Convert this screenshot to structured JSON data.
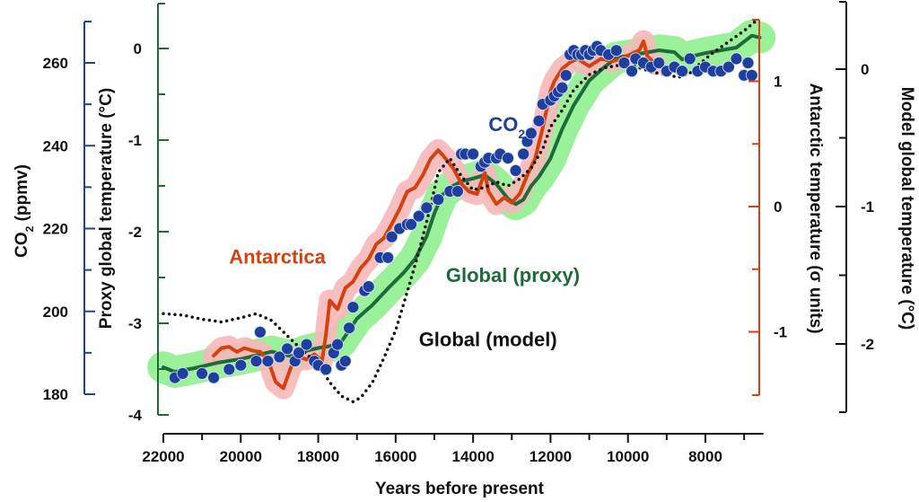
{
  "chart_data": {
    "type": "line",
    "title": "",
    "xlabel": "Years before present",
    "x_axis": {
      "range": [
        22000,
        6500
      ],
      "reversed": true,
      "major_ticks": [
        22000,
        20000,
        18000,
        16000,
        14000,
        12000,
        10000,
        8000
      ],
      "minor_ticks": [
        21000,
        19000,
        17000,
        15000,
        13000,
        11000,
        9000,
        7000
      ],
      "tick_labels": [
        "22000",
        "20000",
        "18000",
        "16000",
        "14000",
        "12000",
        "10000",
        "8000"
      ]
    },
    "y_axes": [
      {
        "id": "co2",
        "label_main": "CO",
        "label_sub": "2",
        "label_rest": " (ppmv)",
        "side": "left-outer",
        "color": "#1f3f9f",
        "range": [
          176,
          270
        ],
        "ticks": [
          180,
          200,
          220,
          240,
          260
        ],
        "minor_ticks": [
          190,
          210,
          230,
          250
        ],
        "tick_labels": [
          "180",
          "200",
          "220",
          "240",
          "260"
        ]
      },
      {
        "id": "proxy",
        "label": "Proxy global temperature (°C)",
        "side": "left-inner",
        "color": "#1e6b3a",
        "range": [
          -4,
          0.5
        ],
        "ticks": [
          -4,
          -3,
          -2,
          -1,
          0
        ],
        "minor_ticks": [
          -3.5,
          -2.5,
          -1.5,
          -0.5
        ],
        "tick_labels": [
          "-4",
          "-3",
          "-2",
          "-1",
          "0"
        ]
      },
      {
        "id": "antarctic",
        "label": "Antarctic temperature (σ units)",
        "side": "right-inner",
        "color": "#d4410f",
        "range": [
          -1.5,
          1.5
        ],
        "ticks": [
          -1,
          0,
          1
        ],
        "minor_ticks": [
          -0.5,
          0.5
        ],
        "tick_labels": [
          "-1",
          "0",
          "1"
        ]
      },
      {
        "id": "model",
        "label": "Model global temperature (°C)",
        "side": "right-outer",
        "color": "#111111",
        "range": [
          -2.5,
          0.5
        ],
        "ticks": [
          -2,
          -1,
          0
        ],
        "minor_ticks": [
          -1.5,
          -0.5
        ],
        "tick_labels": [
          "-2",
          "-1",
          "0"
        ]
      }
    ],
    "annotations": [
      {
        "text": "Antarctica",
        "color": "#d4410f",
        "x": 20300,
        "axis": "proxy",
        "y": -2.35
      },
      {
        "text_main": "CO",
        "text_sub": "2",
        "color": "#1f3f9f",
        "x": 13600,
        "axis": "proxy",
        "y": -0.9
      },
      {
        "text": "Global (proxy)",
        "color": "#1e6b3a",
        "x": 14700,
        "axis": "proxy",
        "y": -2.55
      },
      {
        "text": "Global (model)",
        "color": "#111111",
        "x": 15400,
        "axis": "proxy",
        "y": -3.25
      }
    ],
    "series": [
      {
        "name": "Global (proxy)",
        "axis": "proxy",
        "style": "line-with-band",
        "color": "#1e6b3a",
        "band_color": "#8ff08f",
        "band_halfwidth": 0.15,
        "x": [
          22000,
          21700,
          21200,
          20600,
          20000,
          19600,
          19200,
          18700,
          18300,
          18000,
          17700,
          17400,
          17000,
          16600,
          16200,
          15800,
          15500,
          15200,
          15000,
          14800,
          14600,
          14300,
          14000,
          13700,
          13400,
          13100,
          12900,
          12700,
          12500,
          12300,
          12000,
          11700,
          11400,
          11000,
          10600,
          10300,
          10000,
          9600,
          9200,
          8800,
          8600,
          8300,
          8000,
          7600,
          7200,
          6800,
          6600
        ],
        "values": [
          -3.48,
          -3.53,
          -3.49,
          -3.43,
          -3.39,
          -3.35,
          -3.31,
          -3.36,
          -3.3,
          -3.27,
          -3.25,
          -3.2,
          -2.95,
          -2.8,
          -2.62,
          -2.45,
          -2.3,
          -2.05,
          -1.8,
          -1.6,
          -1.52,
          -1.45,
          -1.42,
          -1.38,
          -1.48,
          -1.64,
          -1.7,
          -1.65,
          -1.5,
          -1.4,
          -1.2,
          -0.88,
          -0.62,
          -0.35,
          -0.2,
          -0.1,
          -0.08,
          -0.05,
          -0.02,
          -0.04,
          -0.12,
          -0.08,
          -0.05,
          -0.02,
          0.01,
          0.14,
          0.12
        ]
      },
      {
        "name": "Antarctica",
        "axis": "antarctic",
        "style": "line-with-band",
        "color": "#d4410f",
        "band_color": "#f6b8b8",
        "band_halfwidth": 0.07,
        "x": [
          20700,
          20500,
          20300,
          20100,
          19900,
          19700,
          19500,
          19300,
          19100,
          18900,
          18700,
          18500,
          18300,
          18100,
          17900,
          17800,
          17700,
          17500,
          17300,
          17100,
          16900,
          16700,
          16500,
          16300,
          16100,
          15900,
          15700,
          15500,
          15300,
          15100,
          14900,
          14700,
          14500,
          14300,
          14100,
          13900,
          13700,
          13600,
          13400,
          13200,
          13000,
          12800,
          12600,
          12400,
          12200,
          12000,
          11900,
          11700,
          11500,
          11300,
          11000,
          10700,
          10400,
          10100,
          9900,
          9700,
          9600,
          9500,
          9300
        ],
        "values": [
          -1.19,
          -1.13,
          -1.12,
          -1.16,
          -1.13,
          -1.15,
          -1.16,
          -1.22,
          -1.4,
          -1.45,
          -1.28,
          -1.2,
          -1.22,
          -1.18,
          -1.23,
          -1.02,
          -0.75,
          -0.82,
          -0.65,
          -0.6,
          -0.49,
          -0.42,
          -0.3,
          -0.25,
          -0.14,
          -0.02,
          0.12,
          0.15,
          0.25,
          0.38,
          0.45,
          0.38,
          0.3,
          0.18,
          0.12,
          0.1,
          0.27,
          0.12,
          0.02,
          0.07,
          0.03,
          0.1,
          0.25,
          0.38,
          0.63,
          0.92,
          1.0,
          1.1,
          1.15,
          1.18,
          1.12,
          1.18,
          1.16,
          1.19,
          1.22,
          1.25,
          1.32,
          1.2,
          1.14
        ]
      },
      {
        "name": "Global (model)",
        "axis": "model",
        "style": "dotted",
        "color": "#111111",
        "x": [
          22000,
          21500,
          21000,
          20500,
          20000,
          19600,
          19200,
          18800,
          18400,
          18000,
          17700,
          17400,
          17100,
          16900,
          16600,
          16300,
          16000,
          15700,
          15400,
          15100,
          14900,
          14600,
          14300,
          14000,
          13700,
          13400,
          13100,
          12800,
          12500,
          12200,
          12000,
          11700,
          11400,
          11000,
          10600,
          10200,
          9800,
          9400,
          9000,
          8700,
          8400,
          8100,
          7800,
          7400,
          7000,
          6700
        ],
        "values": [
          -1.78,
          -1.79,
          -1.82,
          -1.84,
          -1.81,
          -1.78,
          -1.83,
          -1.94,
          -2.05,
          -2.15,
          -2.28,
          -2.38,
          -2.42,
          -2.39,
          -2.28,
          -2.1,
          -1.9,
          -1.62,
          -1.33,
          -1.0,
          -0.75,
          -0.65,
          -0.78,
          -0.88,
          -0.86,
          -0.82,
          -0.85,
          -0.8,
          -0.72,
          -0.58,
          -0.42,
          -0.3,
          -0.15,
          -0.04,
          0.01,
          0.03,
          0.02,
          -0.02,
          -0.04,
          -0.06,
          -0.03,
          0.05,
          0.12,
          0.2,
          0.28,
          0.35
        ]
      },
      {
        "name": "CO2",
        "axis": "co2",
        "style": "scatter",
        "color": "#1f3f9f",
        "x": [
          21700,
          21500,
          21000,
          20700,
          20300,
          20000,
          19600,
          19500,
          19300,
          19000,
          18800,
          18600,
          18500,
          18300,
          18100,
          18000,
          17800,
          17600,
          17500,
          17400,
          17300,
          17200,
          17100,
          16800,
          16700,
          16400,
          16200,
          16100,
          15900,
          15700,
          15600,
          15400,
          15200,
          14900,
          14600,
          14400,
          14300,
          14200,
          14000,
          13800,
          13700,
          13600,
          13400,
          13300,
          13100,
          12900,
          12700,
          12600,
          12500,
          12300,
          12200,
          12000,
          11900,
          11800,
          11700,
          11600,
          11500,
          11400,
          11300,
          11200,
          11100,
          11000,
          10900,
          10800,
          10700,
          10500,
          10300,
          10100,
          9900,
          9800,
          9600,
          9400,
          9200,
          9000,
          8800,
          8600,
          8400,
          8200,
          8000,
          7800,
          7600,
          7400,
          7200,
          7000,
          6900,
          6800
        ],
        "values": [
          184,
          185,
          185,
          184,
          186,
          187,
          188,
          195,
          188,
          189,
          191,
          188,
          190,
          192,
          188,
          187,
          186,
          190,
          192,
          187,
          188,
          196,
          201,
          205,
          206,
          213,
          213,
          218,
          220,
          221,
          221,
          223,
          225,
          227,
          229,
          229,
          238,
          238,
          238,
          235,
          236,
          237,
          237,
          238,
          237,
          234,
          238,
          241,
          243,
          246,
          250,
          251,
          252,
          253,
          254,
          257,
          262,
          263,
          262,
          262,
          263,
          262,
          263,
          264,
          263,
          262,
          263,
          260,
          258,
          261,
          260,
          259,
          260,
          258,
          259,
          258,
          261,
          258,
          259,
          258,
          258,
          259,
          261,
          257,
          260,
          257
        ]
      }
    ]
  }
}
